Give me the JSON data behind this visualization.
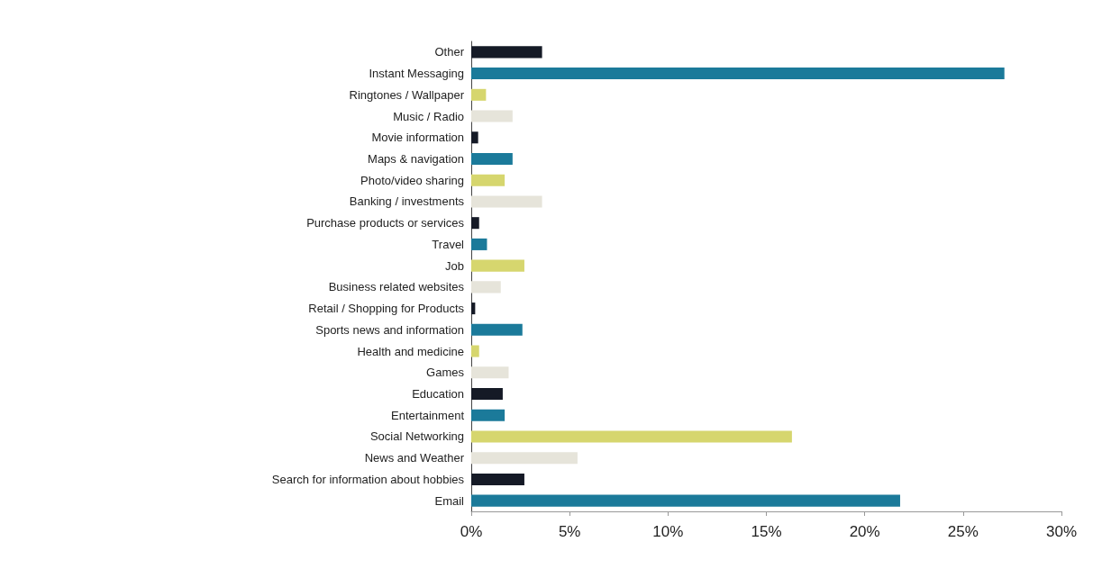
{
  "chart_data": {
    "type": "bar",
    "orientation": "horizontal",
    "categories": [
      "Other",
      "Instant Messaging",
      "Ringtones / Wallpaper",
      "Music / Radio",
      "Movie information",
      "Maps & navigation",
      "Photo/video sharing",
      "Banking / investments",
      "Purchase products or services",
      "Travel",
      "Job",
      "Business related websites",
      "Retail / Shopping for Products",
      "Sports news and information",
      "Health and medicine",
      "Games",
      "Education",
      "Entertainment",
      "Social Networking",
      "News and Weather",
      "Search for information about hobbies",
      "Email"
    ],
    "values": [
      3.6,
      27.1,
      0.75,
      2.1,
      0.35,
      2.1,
      1.7,
      3.6,
      0.4,
      0.8,
      2.7,
      1.5,
      0.2,
      2.6,
      0.4,
      1.9,
      1.6,
      1.7,
      16.3,
      5.4,
      2.7,
      21.8
    ],
    "colors": [
      "#151a26",
      "#1b7a9a",
      "#d6d66e",
      "#e6e4da",
      "#151a26",
      "#1b7a9a",
      "#d6d66e",
      "#e6e4da",
      "#151a26",
      "#1b7a9a",
      "#d6d66e",
      "#e6e4da",
      "#151a26",
      "#1b7a9a",
      "#d6d66e",
      "#e6e4da",
      "#151a26",
      "#1b7a9a",
      "#d6d66e",
      "#e6e4da",
      "#151a26",
      "#1b7a9a"
    ],
    "xlim": [
      0,
      30
    ],
    "xticks": [
      {
        "value": 0,
        "label": "0%"
      },
      {
        "value": 5,
        "label": "5%"
      },
      {
        "value": 10,
        "label": "10%"
      },
      {
        "value": 15,
        "label": "15%"
      },
      {
        "value": 20,
        "label": "20%"
      },
      {
        "value": 25,
        "label": "25%"
      },
      {
        "value": 30,
        "label": "30%"
      }
    ],
    "grid": false
  }
}
